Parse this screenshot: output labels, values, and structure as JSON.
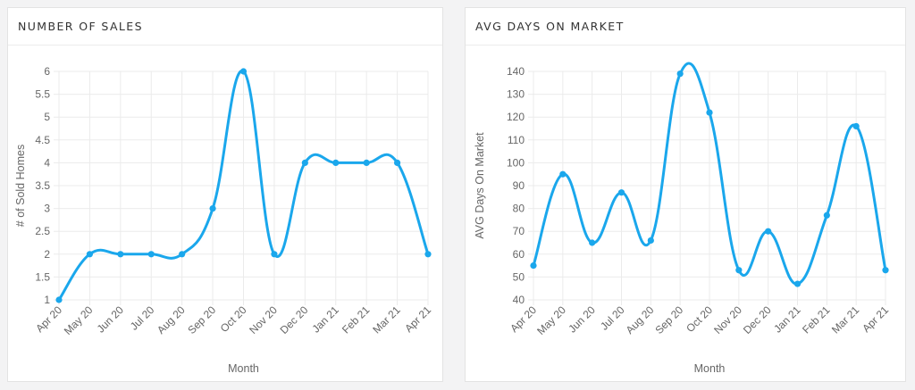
{
  "chart_data": [
    {
      "type": "line",
      "title": "NUMBER OF SALES",
      "xlabel": "Month",
      "ylabel": "# of Sold Homes",
      "categories": [
        "Apr 20",
        "May 20",
        "Jun 20",
        "Jul 20",
        "Aug 20",
        "Sep 20",
        "Oct 20",
        "Nov 20",
        "Dec 20",
        "Jan 21",
        "Feb 21",
        "Mar 21",
        "Apr 21"
      ],
      "ylim": [
        1,
        6
      ],
      "yticks": [
        "1",
        "1.5",
        "2",
        "2.5",
        "3",
        "3.5",
        "4",
        "4.5",
        "5",
        "5.5",
        "6"
      ],
      "series": [
        {
          "values": [
            1,
            2,
            2,
            2,
            2,
            3,
            6,
            2,
            4,
            4,
            4,
            4,
            2
          ],
          "color": "#1aa7ec"
        }
      ],
      "grid": true,
      "line_style": "smooth"
    },
    {
      "type": "line",
      "title": "AVG DAYS ON MARKET",
      "xlabel": "Month",
      "ylabel": "AVG Days On Market",
      "categories": [
        "Apr 20",
        "May 20",
        "Jun 20",
        "Jul 20",
        "Aug 20",
        "Sep 20",
        "Oct 20",
        "Nov 20",
        "Dec 20",
        "Jan 21",
        "Feb 21",
        "Mar 21",
        "Apr 21"
      ],
      "ylim": [
        40,
        140
      ],
      "yticks": [
        "40",
        "50",
        "60",
        "70",
        "80",
        "90",
        "100",
        "110",
        "120",
        "130",
        "140"
      ],
      "series": [
        {
          "values": [
            55,
            95,
            65,
            87,
            66,
            139,
            122,
            53,
            70,
            47,
            77,
            116,
            53
          ],
          "color": "#1aa7ec"
        }
      ],
      "grid": true,
      "line_style": "smooth"
    }
  ]
}
